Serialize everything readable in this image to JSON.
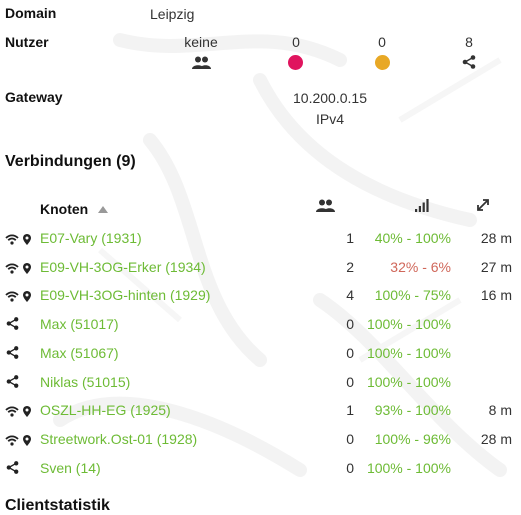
{
  "colors": {
    "link": "#6dbb35",
    "quality_bad": "#d0675a",
    "dot_pink": "#e0145e",
    "dot_orange": "#e8a825"
  },
  "domain": {
    "label": "Domain",
    "value": "Leipzig"
  },
  "nutzer": {
    "label": "Nutzer",
    "clients": "keine",
    "pink_count": "0",
    "orange_count": "0",
    "share_count": "8"
  },
  "gateway": {
    "label": "Gateway",
    "ip": "10.200.0.15",
    "proto": "IPv4"
  },
  "verbindungen": {
    "title": "Verbindungen (9)",
    "col_knoten": "Knoten",
    "sort": "ascending",
    "rows": [
      {
        "type": "wifi",
        "name": "E07-Vary (1931)",
        "clients": "1",
        "tq": "40% - 100%",
        "tq_quality": "good",
        "dist": "28 m"
      },
      {
        "type": "wifi",
        "name": "E09-VH-3OG-Erker (1934)",
        "clients": "2",
        "tq": "32% - 6%",
        "tq_quality": "bad",
        "dist": "27 m"
      },
      {
        "type": "wifi",
        "name": "E09-VH-3OG-hinten (1929)",
        "clients": "4",
        "tq": "100% - 75%",
        "tq_quality": "good",
        "dist": "16 m"
      },
      {
        "type": "vpn",
        "name": "Max (51017)",
        "clients": "0",
        "tq": "100% - 100%",
        "tq_quality": "good",
        "dist": ""
      },
      {
        "type": "vpn",
        "name": "Max (51067)",
        "clients": "0",
        "tq": "100% - 100%",
        "tq_quality": "good",
        "dist": ""
      },
      {
        "type": "vpn",
        "name": "Niklas (51015)",
        "clients": "0",
        "tq": "100% - 100%",
        "tq_quality": "good",
        "dist": ""
      },
      {
        "type": "wifi",
        "name": "OSZL-HH-EG (1925)",
        "clients": "1",
        "tq": "93% - 100%",
        "tq_quality": "good",
        "dist": "8 m"
      },
      {
        "type": "wifi",
        "name": "Streetwork.Ost-01 (1928)",
        "clients": "0",
        "tq": "100% - 96%",
        "tq_quality": "good",
        "dist": "28 m"
      },
      {
        "type": "vpn",
        "name": "Sven (14)",
        "clients": "0",
        "tq": "100% - 100%",
        "tq_quality": "good",
        "dist": ""
      }
    ]
  },
  "next_section": {
    "title": "Clientstatistik"
  }
}
